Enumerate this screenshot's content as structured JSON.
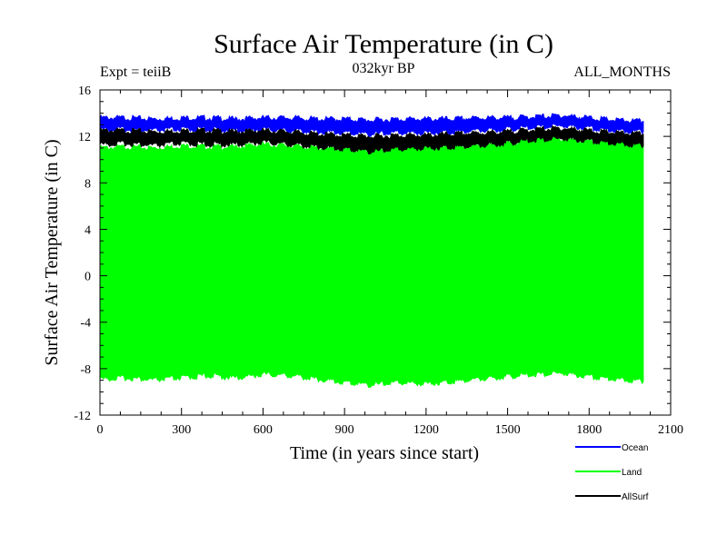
{
  "chart_data": {
    "type": "area",
    "title": "Surface Air Temperature (in C)",
    "subtitle": "032kyr BP",
    "experiment": "Expt = teiiB",
    "period": "ALL_MONTHS",
    "xlabel": "Time (in years since start)",
    "ylabel": "Surface Air Temperature (in C)",
    "xlim": [
      0,
      2100
    ],
    "ylim": [
      -12,
      16
    ],
    "x_ticks": [
      0,
      300,
      600,
      900,
      1200,
      1500,
      1800,
      2100
    ],
    "y_ticks": [
      16,
      12,
      8,
      4,
      0,
      -4,
      -8,
      -12
    ],
    "x_end": 2000,
    "series": [
      {
        "name": "Land",
        "color": "#00ff00",
        "x": [
          0,
          100,
          200,
          300,
          400,
          500,
          600,
          700,
          800,
          900,
          1000,
          1100,
          1200,
          1300,
          1400,
          1500,
          1600,
          1700,
          1800,
          1900,
          2000
        ],
        "upper": [
          11.0,
          11.1,
          11.0,
          11.2,
          11.1,
          11.1,
          11.3,
          11.2,
          11.0,
          10.9,
          10.8,
          11.0,
          11.0,
          11.1,
          11.2,
          11.4,
          11.7,
          11.8,
          11.6,
          11.4,
          11.3
        ],
        "lower": [
          -8.9,
          -8.8,
          -9.0,
          -8.8,
          -8.6,
          -8.8,
          -8.5,
          -8.6,
          -8.9,
          -9.2,
          -9.4,
          -9.2,
          -9.3,
          -9.1,
          -8.9,
          -8.7,
          -8.5,
          -8.4,
          -8.7,
          -8.9,
          -9.1
        ]
      },
      {
        "name": "Ocean",
        "color": "#0000ff",
        "x": [
          0,
          100,
          200,
          300,
          400,
          500,
          600,
          700,
          800,
          900,
          1000,
          1100,
          1200,
          1300,
          1400,
          1500,
          1600,
          1700,
          1800,
          1900,
          2000
        ],
        "upper": [
          13.6,
          13.6,
          13.5,
          13.6,
          13.6,
          13.5,
          13.6,
          13.6,
          13.5,
          13.5,
          13.4,
          13.5,
          13.5,
          13.5,
          13.6,
          13.6,
          13.7,
          13.8,
          13.6,
          13.4,
          13.3
        ],
        "lower": [
          12.6,
          12.6,
          12.5,
          12.6,
          12.6,
          12.5,
          12.6,
          12.5,
          12.4,
          12.3,
          12.2,
          12.3,
          12.3,
          12.4,
          12.5,
          12.6,
          12.8,
          12.9,
          12.7,
          12.5,
          12.4
        ]
      },
      {
        "name": "AllSurf",
        "color": "#000000",
        "x": [
          0,
          100,
          200,
          300,
          400,
          500,
          600,
          700,
          800,
          900,
          1000,
          1100,
          1200,
          1300,
          1400,
          1500,
          1600,
          1700,
          1800,
          1900,
          2000
        ],
        "upper": [
          12.5,
          12.5,
          12.4,
          12.5,
          12.5,
          12.4,
          12.5,
          12.4,
          12.2,
          12.1,
          12.0,
          12.1,
          12.1,
          12.2,
          12.3,
          12.4,
          12.6,
          12.7,
          12.5,
          12.3,
          12.2
        ],
        "lower": [
          11.3,
          11.4,
          11.2,
          11.4,
          11.3,
          11.3,
          11.5,
          11.3,
          11.1,
          10.9,
          10.7,
          10.9,
          11.0,
          11.1,
          11.2,
          11.4,
          11.7,
          11.8,
          11.6,
          11.4,
          11.2
        ]
      }
    ],
    "legend": {
      "placement": "bottom-right",
      "items": [
        {
          "label": "Ocean",
          "color": "#0000ff"
        },
        {
          "label": "Land",
          "color": "#00ff00"
        },
        {
          "label": "AllSurf",
          "color": "#000000"
        }
      ]
    }
  }
}
